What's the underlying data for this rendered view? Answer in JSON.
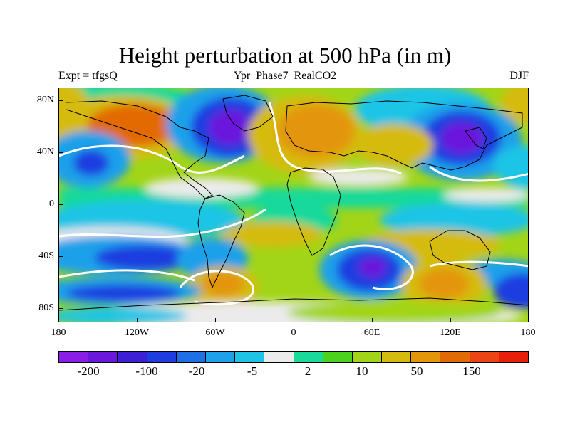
{
  "title": "Height perturbation at 500 hPa (in m)",
  "left_label": "Expt = tfgsQ",
  "center_label": "Ypr_Phase7_RealCO2",
  "right_label": "DJF",
  "lat_ticks": [
    "80N",
    "40N",
    "0",
    "40S",
    "80S"
  ],
  "lon_ticks": [
    "180",
    "120W",
    "60W",
    "0",
    "60E",
    "120E",
    "180"
  ],
  "colorbar": {
    "colors": [
      "#8a1ee6",
      "#6a18dc",
      "#3d1fd6",
      "#1e3ce0",
      "#1f6fe6",
      "#1fa0ea",
      "#1dc4e6",
      "#ebebeb",
      "#19d99b",
      "#4cd21c",
      "#a2d518",
      "#d5bb10",
      "#e3960a",
      "#e26a05",
      "#ec4414",
      "#e8200a"
    ],
    "labels": [
      "-200",
      "-100",
      "-20",
      "-5",
      "2",
      "10",
      "50",
      "150"
    ]
  }
}
